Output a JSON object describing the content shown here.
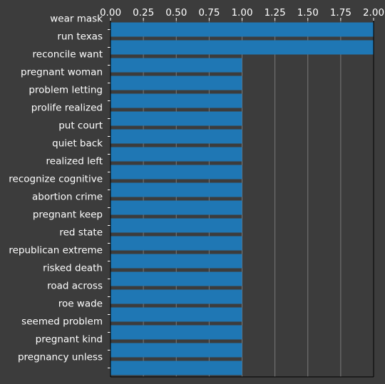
{
  "chart_data": {
    "type": "bar",
    "orientation": "horizontal",
    "categories": [
      "wear mask",
      "run texas",
      "reconcile want",
      "pregnant woman",
      "problem letting",
      "prolife realized",
      "put court",
      "quiet back",
      "realized left",
      "recognize cognitive",
      "abortion crime",
      "pregnant keep",
      "red state",
      "republican extreme",
      "risked death",
      "road across",
      "roe wade",
      "seemed problem",
      "pregnant kind",
      "pregnancy unless"
    ],
    "values": [
      2,
      2,
      1,
      1,
      1,
      1,
      1,
      1,
      1,
      1,
      1,
      1,
      1,
      1,
      1,
      1,
      1,
      1,
      1,
      1
    ],
    "xlim": [
      0,
      2.0
    ],
    "xticks": [
      "0.00",
      "0.25",
      "0.50",
      "0.75",
      "1.00",
      "1.25",
      "1.50",
      "1.75",
      "2.00"
    ],
    "x_axis_position": "top",
    "grid": true,
    "bar_color": "#1f77b4",
    "background_color": "#3c3c3c",
    "grid_color": "#7a7a7a",
    "text_color": "#ffffff"
  }
}
